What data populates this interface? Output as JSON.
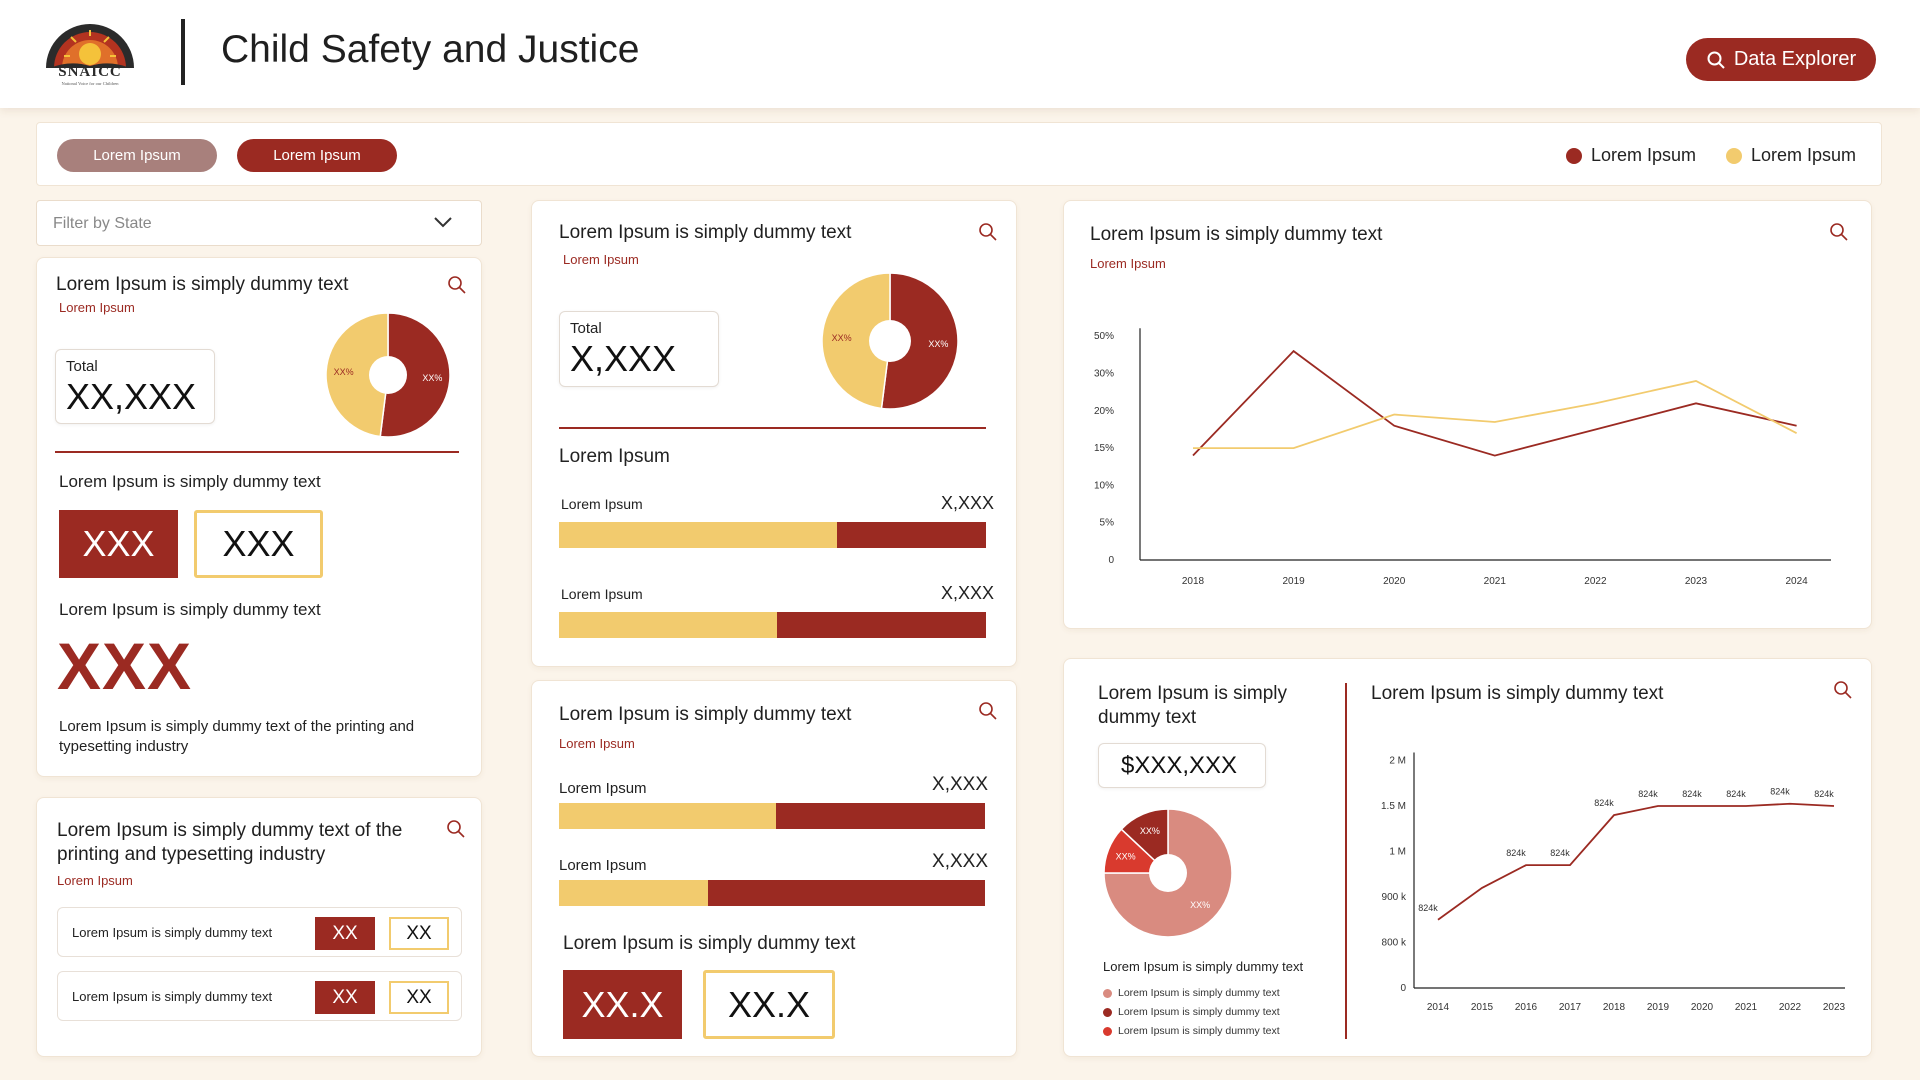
{
  "header": {
    "logo_text": "SNAICC",
    "logo_subtitle": "National Voice for our Children",
    "title": "Child Safety and Justice",
    "explorer_button": "Data Explorer"
  },
  "toolbar": {
    "pill1": "Lorem Ipsum",
    "pill2": "Lorem Ipsum",
    "legend": [
      {
        "label": "Lorem Ipsum",
        "color": "#9b2a22"
      },
      {
        "label": "Lorem Ipsum",
        "color": "#f2cb6e"
      }
    ]
  },
  "filter": {
    "placeholder": "Filter by State"
  },
  "colors": {
    "primary": "#9b2a22",
    "accent": "#f2cb6e",
    "soft": "#d98b80",
    "bright": "#d93a2e"
  },
  "card1": {
    "title": "Lorem Ipsum is simply dummy text",
    "subtitle": "Lorem Ipsum",
    "total_label": "Total",
    "total_value": "XX,XXX",
    "pie_labels": [
      "XX%",
      "XX%"
    ],
    "section1_title": "Lorem Ipsum is simply dummy text",
    "box1": "XXX",
    "box2": "XXX",
    "section2_title": "Lorem Ipsum is simply dummy text",
    "big_value": "XXX",
    "description": "Lorem Ipsum is simply dummy text of the printing and typesetting industry"
  },
  "card2": {
    "title": "Lorem Ipsum is simply dummy text of the printing and typesetting industry",
    "subtitle": "Lorem Ipsum",
    "rows": [
      {
        "label": "Lorem Ipsum is simply dummy text",
        "v1": "XX",
        "v2": "XX"
      },
      {
        "label": "Lorem Ipsum is simply dummy text",
        "v1": "XX",
        "v2": "XX"
      }
    ]
  },
  "card3": {
    "title": "Lorem Ipsum is simply dummy text",
    "subtitle": "Lorem Ipsum",
    "total_label": "Total",
    "total_value": "X,XXX",
    "pie_labels": [
      "XX%",
      "XX%"
    ],
    "section_title": "Lorem Ipsum",
    "bars": [
      {
        "label": "Lorem Ipsum",
        "value": "X,XXX",
        "share": 0.65
      },
      {
        "label": "Lorem Ipsum",
        "value": "X,XXX",
        "share": 0.51
      }
    ]
  },
  "card4": {
    "title": "Lorem Ipsum is simply dummy text",
    "subtitle": "Lorem Ipsum",
    "bars": [
      {
        "label": "Lorem Ipsum",
        "value": "X,XXX",
        "share": 0.51
      },
      {
        "label": "Lorem Ipsum",
        "value": "X,XXX",
        "share": 0.35
      }
    ],
    "section_title": "Lorem Ipsum is simply dummy text",
    "box1": "XX.X",
    "box2": "XX.X"
  },
  "card5": {
    "title": "Lorem Ipsum is simply dummy text",
    "subtitle": "Lorem Ipsum"
  },
  "card6": {
    "left_title": "Lorem Ipsum is simply dummy text",
    "value": "$XXX,XXX",
    "pie_labels": [
      "XX%",
      "XX%",
      "XX%"
    ],
    "legend_title": "Lorem Ipsum is simply dummy text",
    "legend": [
      {
        "label": "Lorem Ipsum is simply dummy text",
        "color": "#d98b80"
      },
      {
        "label": "Lorem Ipsum is simply dummy text",
        "color": "#9b2a22"
      },
      {
        "label": "Lorem Ipsum is simply dummy text",
        "color": "#d93a2e"
      }
    ],
    "right_title": "Lorem Ipsum is simply dummy text"
  },
  "chart_data": [
    {
      "type": "pie",
      "values": [
        52,
        48
      ],
      "labels": [
        "XX%",
        "XX%"
      ],
      "colors": [
        "#9b2a22",
        "#f2cb6e"
      ]
    },
    {
      "type": "pie",
      "values": [
        52,
        48
      ],
      "labels": [
        "XX%",
        "XX%"
      ],
      "colors": [
        "#9b2a22",
        "#f2cb6e"
      ]
    },
    {
      "type": "line",
      "x": [
        "2018",
        "2019",
        "2020",
        "2021",
        "2022",
        "2023",
        "2024"
      ],
      "y_ticks": [
        "0",
        "5%",
        "10%",
        "15%",
        "20%",
        "30%",
        "50%"
      ],
      "series": [
        {
          "color": "#9b2a22",
          "values": [
            2.8,
            5.6,
            3.6,
            2.8,
            3.5,
            4.2,
            3.6
          ]
        },
        {
          "color": "#f2cb6e",
          "values": [
            3.0,
            3.0,
            3.9,
            3.7,
            4.2,
            4.8,
            3.4
          ]
        }
      ]
    },
    {
      "type": "pie",
      "values": [
        75,
        12,
        13
      ],
      "labels": [
        "XX%",
        "XX%",
        "XX%"
      ],
      "colors": [
        "#d98b80",
        "#d93a2e",
        "#9b2a22"
      ]
    },
    {
      "type": "line",
      "x": [
        "2014",
        "2015",
        "2016",
        "2017",
        "2018",
        "2019",
        "2020",
        "2021",
        "2022",
        "2023"
      ],
      "y_ticks": [
        "0",
        "800 k",
        "900 k",
        "1 M",
        "1.5 M",
        "2 M"
      ],
      "series": [
        {
          "color": "#9b2a22",
          "values": [
            1.5,
            2.2,
            2.7,
            2.7,
            3.8,
            4.0,
            4.0,
            4.0,
            4.05,
            4.0
          ],
          "point_labels": [
            "824k",
            "",
            "824k",
            "824k",
            "824k",
            "824k",
            "824k",
            "824k",
            "824k",
            "824k"
          ]
        }
      ]
    }
  ]
}
